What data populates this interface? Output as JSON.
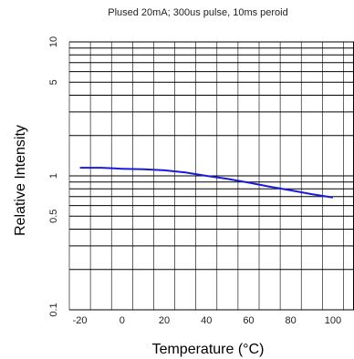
{
  "chart_data": {
    "type": "line",
    "subtitle": "Plused 20mA; 300us pulse, 10ms peroid",
    "xlabel": "Temperature (°C)",
    "ylabel": "Relative Intensity",
    "xlim": [
      -25,
      110
    ],
    "ylim": [
      0.1,
      10
    ],
    "yscale": "log",
    "grid": true,
    "x_ticks": [
      -20,
      0,
      20,
      40,
      60,
      80,
      100
    ],
    "x_tick_labels": [
      "-20",
      "0",
      "20",
      "40",
      "60",
      "80",
      "100"
    ],
    "y_ticks": [
      0.1,
      0.5,
      1,
      5,
      10
    ],
    "y_tick_labels": [
      "0.1",
      "0.5",
      "1",
      "5",
      "10"
    ],
    "series": [
      {
        "color": "#1a1adc",
        "x": [
          -20,
          -10,
          0,
          10,
          20,
          30,
          40,
          50,
          60,
          70,
          80,
          90,
          100
        ],
        "y": [
          1.15,
          1.15,
          1.13,
          1.12,
          1.1,
          1.06,
          1.0,
          0.95,
          0.89,
          0.83,
          0.78,
          0.73,
          0.69
        ]
      }
    ]
  }
}
